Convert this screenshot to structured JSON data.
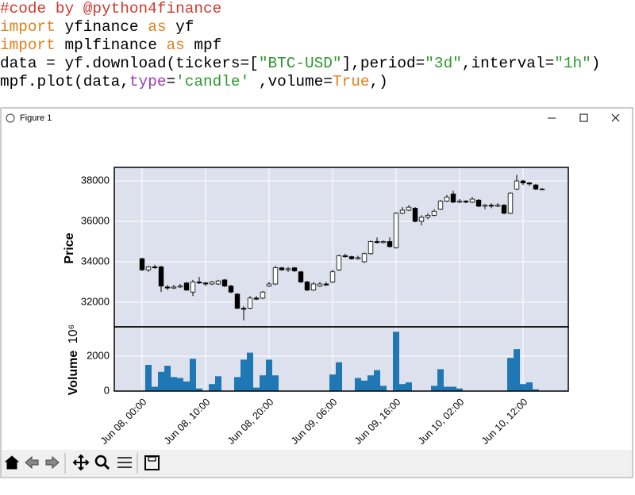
{
  "code": {
    "lines": [
      [
        {
          "text": "#code by @python4finance",
          "color": "#d03a2f"
        }
      ],
      [
        {
          "text": "import",
          "color": "#e0801a"
        },
        {
          "text": " yfinance ",
          "color": "#000000"
        },
        {
          "text": "as",
          "color": "#e0801a"
        },
        {
          "text": " yf",
          "color": "#000000"
        }
      ],
      [
        {
          "text": "import",
          "color": "#e0801a"
        },
        {
          "text": " mplfinance ",
          "color": "#000000"
        },
        {
          "text": "as",
          "color": "#e0801a"
        },
        {
          "text": " mpf",
          "color": "#000000"
        }
      ],
      [
        {
          "text": "data = yf.download(tickers=[",
          "color": "#000000"
        },
        {
          "text": "\"BTC-USD\"",
          "color": "#2e9a2e"
        },
        {
          "text": "],period=",
          "color": "#000000"
        },
        {
          "text": "\"3d\"",
          "color": "#2e9a2e"
        },
        {
          "text": ",interval=",
          "color": "#000000"
        },
        {
          "text": "\"1h\"",
          "color": "#2e9a2e"
        },
        {
          "text": ")",
          "color": "#000000"
        }
      ],
      [
        {
          "text": "mpf.plot(data,",
          "color": "#000000"
        },
        {
          "text": "type",
          "color": "#9b3fb5"
        },
        {
          "text": "=",
          "color": "#000000"
        },
        {
          "text": "'candle'",
          "color": "#2e9a2e"
        },
        {
          "text": " ,volume=",
          "color": "#000000"
        },
        {
          "text": "True",
          "color": "#e0801a"
        },
        {
          "text": ",)",
          "color": "#000000"
        }
      ]
    ]
  },
  "window": {
    "title": "Figure 1"
  },
  "chart_data": {
    "type": "candlestick",
    "ylabel": "Price",
    "volume_ylabel": "Volume",
    "volume_multiplier_label": "10⁶",
    "categories": [
      "Jun 08, 00:00",
      null,
      null,
      null,
      null,
      null,
      null,
      null,
      null,
      null,
      "Jun 08, 10:00",
      null,
      null,
      null,
      null,
      null,
      null,
      null,
      null,
      null,
      "Jun 08, 20:00",
      null,
      null,
      null,
      null,
      null,
      null,
      null,
      null,
      null,
      "Jun 09, 06:00",
      null,
      null,
      null,
      null,
      null,
      null,
      null,
      null,
      null,
      "Jun 09, 16:00",
      null,
      null,
      null,
      null,
      null,
      null,
      null,
      null,
      null,
      "Jun 10, 02:00",
      null,
      null,
      null,
      null,
      null,
      null,
      null,
      null,
      null,
      "Jun 10, 12:00",
      null,
      null,
      null
    ],
    "open": [
      34150,
      33600,
      33750,
      33750,
      32750,
      32700,
      32750,
      32950,
      32500,
      33000,
      32950,
      32900,
      32900,
      33100,
      32800,
      32400,
      31700,
      31700,
      32200,
      32200,
      32800,
      32900,
      33700,
      33600,
      33700,
      33500,
      33000,
      32600,
      32800,
      32900,
      33000,
      33600,
      34300,
      34250,
      34150,
      34000,
      34400,
      35000,
      34950,
      35000,
      34700,
      36400,
      36550,
      36650,
      36000,
      36200,
      36300,
      36600,
      37000,
      37350,
      36950,
      37000,
      36950,
      37050,
      36750,
      36800,
      36750,
      36800,
      36400,
      37600,
      38000,
      37900,
      37800,
      37600
    ],
    "high": [
      34200,
      33800,
      33850,
      33800,
      32850,
      32850,
      32900,
      33000,
      33100,
      33250,
      33000,
      33050,
      33100,
      33150,
      32850,
      32450,
      31800,
      32300,
      32300,
      32550,
      33000,
      33800,
      33750,
      33750,
      33750,
      33550,
      33050,
      33000,
      33000,
      33000,
      33600,
      34350,
      34400,
      34300,
      34300,
      34450,
      35050,
      35200,
      35050,
      35200,
      36450,
      36700,
      36800,
      36700,
      36300,
      36400,
      36600,
      37050,
      37300,
      37500,
      37100,
      37050,
      37200,
      37100,
      36850,
      36900,
      36900,
      36850,
      37450,
      38300,
      38050,
      37950,
      37850,
      37650
    ],
    "low": [
      33550,
      33500,
      33650,
      32500,
      32600,
      32650,
      32700,
      32550,
      32300,
      32900,
      32800,
      32850,
      32850,
      32750,
      32450,
      31650,
      31100,
      31650,
      32100,
      32150,
      32750,
      32850,
      33550,
      33500,
      33500,
      32950,
      32550,
      32550,
      32750,
      32800,
      32950,
      33550,
      34200,
      34100,
      34100,
      33950,
      34350,
      34900,
      34900,
      34700,
      34650,
      36350,
      36500,
      35950,
      35800,
      36100,
      36250,
      36550,
      36950,
      36900,
      36900,
      36900,
      36900,
      36700,
      36600,
      36650,
      36700,
      36350,
      36350,
      37550,
      37800,
      37750,
      37550,
      37550
    ],
    "close": [
      33600,
      33750,
      33700,
      32800,
      32700,
      32750,
      32800,
      32600,
      33000,
      32950,
      32900,
      33000,
      33050,
      32800,
      32500,
      31700,
      31650,
      32200,
      32150,
      32500,
      32900,
      33700,
      33600,
      33650,
      33550,
      33000,
      32600,
      32900,
      32900,
      32850,
      33500,
      34300,
      34250,
      34150,
      34200,
      34400,
      35000,
      34950,
      35000,
      34750,
      36400,
      36550,
      36700,
      36000,
      36200,
      36300,
      36500,
      37000,
      37200,
      36950,
      37000,
      36950,
      37100,
      36750,
      36800,
      36750,
      36800,
      36400,
      37400,
      38000,
      37900,
      37850,
      37600,
      37600
    ],
    "volume": [
      0,
      1500,
      250,
      1100,
      1450,
      800,
      750,
      550,
      1850,
      150,
      0,
      400,
      850,
      0,
      0,
      800,
      1800,
      2200,
      200,
      900,
      1800,
      900,
      0,
      0,
      0,
      0,
      0,
      0,
      0,
      0,
      950,
      1650,
      0,
      0,
      750,
      600,
      900,
      1200,
      300,
      0,
      3400,
      400,
      500,
      0,
      0,
      0,
      300,
      1250,
      250,
      250,
      150,
      0,
      0,
      0,
      0,
      0,
      0,
      0,
      1900,
      2400,
      400,
      500,
      100,
      0
    ],
    "ylim": [
      30780,
      38670
    ],
    "yticks": [
      32000,
      34000,
      36000,
      38000
    ],
    "volume_ylim": [
      0,
      3680
    ],
    "volume_yticks": [
      0,
      2000
    ],
    "up_color": "#ffffff",
    "down_color": "#000000",
    "edge_color": "#000000",
    "volume_color": "#1f77b4",
    "face_color": "#dce1ed",
    "grid": true
  }
}
